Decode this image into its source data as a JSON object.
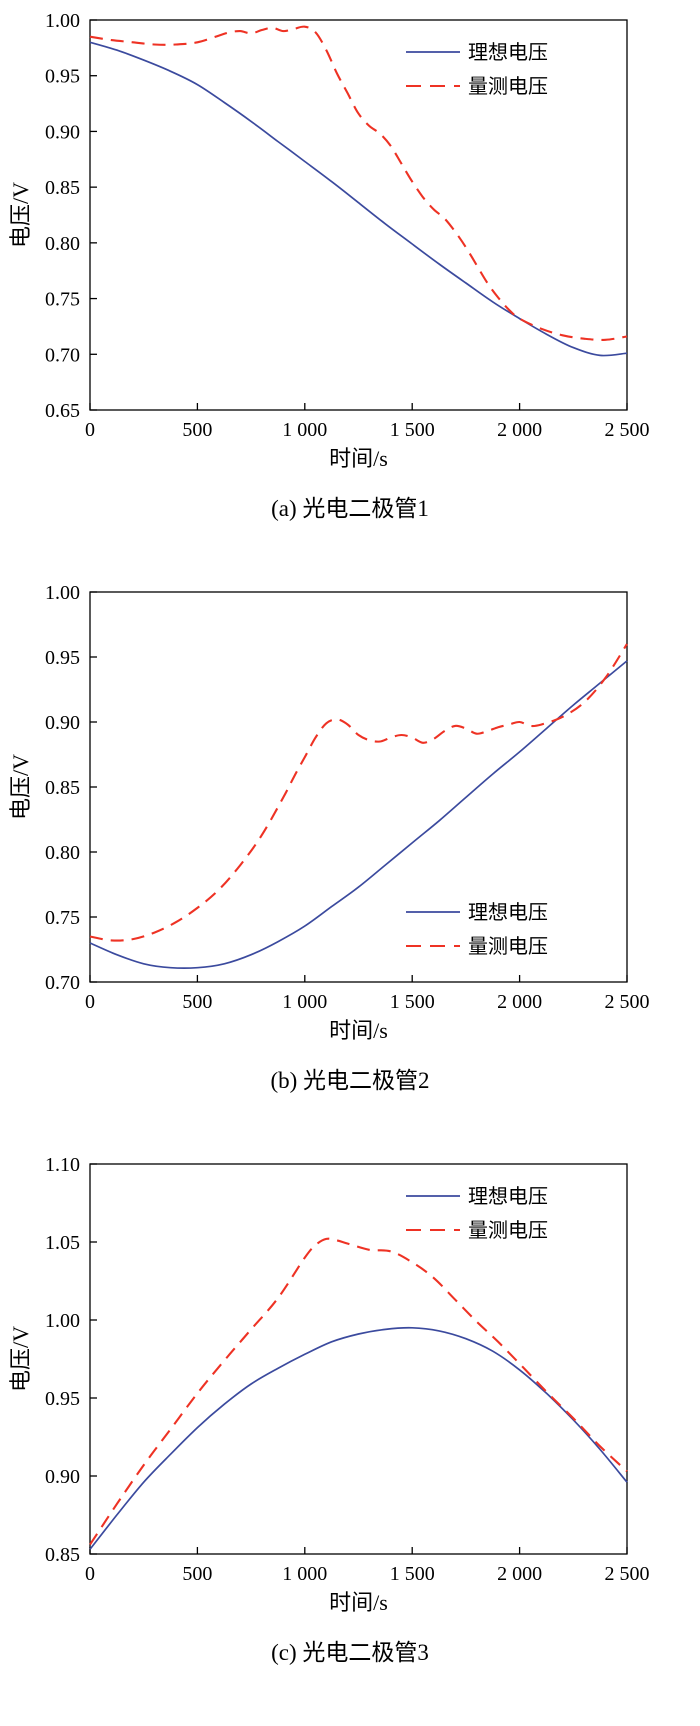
{
  "figure": {
    "ylabel": "电压/V",
    "xlabel": "时间/s",
    "legend": {
      "ideal_label": "理想电压",
      "measured_label": "量测电压"
    },
    "colors": {
      "ideal": "#3b4a9e",
      "measured": "#ee3224",
      "axis": "#000000"
    }
  },
  "chart_data": [
    {
      "key": "a",
      "type": "line",
      "caption": "(a) 光电二极管1",
      "xlabel": "时间/s",
      "ylabel": "电压/V",
      "xlim": [
        0,
        2500
      ],
      "ylim": [
        0.65,
        1.0
      ],
      "xticks": [
        0,
        500,
        1000,
        1500,
        2000,
        2500
      ],
      "xtick_labels": [
        "0",
        "500",
        "1 000",
        "1 500",
        "2 000",
        "2 500"
      ],
      "yticks": [
        0.65,
        0.7,
        0.75,
        0.8,
        0.85,
        0.9,
        0.95,
        1.0
      ],
      "ytick_labels": [
        "0.65",
        "0.70",
        "0.75",
        "0.80",
        "0.85",
        "0.90",
        "0.95",
        "1.00"
      ],
      "grid": false,
      "legend_position": "top-right",
      "series": [
        {
          "name": "理想电压",
          "style": "solid",
          "color": "#3b4a9e",
          "x": [
            0,
            125,
            250,
            375,
            500,
            625,
            750,
            875,
            1000,
            1125,
            1250,
            1375,
            1500,
            1625,
            1750,
            1875,
            2000,
            2125,
            2250,
            2375,
            2500
          ],
          "y": [
            0.98,
            0.973,
            0.964,
            0.954,
            0.942,
            0.926,
            0.909,
            0.891,
            0.873,
            0.855,
            0.836,
            0.817,
            0.799,
            0.781,
            0.764,
            0.747,
            0.732,
            0.718,
            0.706,
            0.699,
            0.701
          ]
        },
        {
          "name": "量测电压",
          "style": "dashed",
          "color": "#ee3224",
          "x": [
            0,
            100,
            200,
            300,
            400,
            500,
            600,
            650,
            700,
            750,
            800,
            850,
            900,
            950,
            1000,
            1050,
            1100,
            1150,
            1200,
            1250,
            1300,
            1350,
            1400,
            1450,
            1500,
            1550,
            1600,
            1650,
            1700,
            1750,
            1800,
            1850,
            1900,
            1950,
            2000,
            2100,
            2200,
            2300,
            2400,
            2500
          ],
          "y": [
            0.985,
            0.982,
            0.98,
            0.978,
            0.978,
            0.98,
            0.986,
            0.989,
            0.99,
            0.988,
            0.991,
            0.993,
            0.99,
            0.992,
            0.994,
            0.989,
            0.973,
            0.952,
            0.934,
            0.916,
            0.905,
            0.898,
            0.887,
            0.871,
            0.855,
            0.841,
            0.83,
            0.822,
            0.81,
            0.796,
            0.78,
            0.764,
            0.751,
            0.74,
            0.732,
            0.723,
            0.717,
            0.714,
            0.713,
            0.716
          ]
        }
      ]
    },
    {
      "key": "b",
      "type": "line",
      "caption": "(b) 光电二极管2",
      "xlabel": "时间/s",
      "ylabel": "电压/V",
      "xlim": [
        0,
        2500
      ],
      "ylim": [
        0.7,
        1.0
      ],
      "xticks": [
        0,
        500,
        1000,
        1500,
        2000,
        2500
      ],
      "xtick_labels": [
        "0",
        "500",
        "1 000",
        "1 500",
        "2 000",
        "2 500"
      ],
      "yticks": [
        0.7,
        0.75,
        0.8,
        0.85,
        0.9,
        0.95,
        1.0
      ],
      "ytick_labels": [
        "0.70",
        "0.75",
        "0.80",
        "0.85",
        "0.90",
        "0.95",
        "1.00"
      ],
      "grid": false,
      "legend_position": "bottom-right",
      "series": [
        {
          "name": "理想电压",
          "style": "solid",
          "color": "#3b4a9e",
          "x": [
            0,
            125,
            250,
            375,
            500,
            625,
            750,
            875,
            1000,
            1125,
            1250,
            1375,
            1500,
            1625,
            1750,
            1875,
            2000,
            2125,
            2250,
            2375,
            2500
          ],
          "y": [
            0.73,
            0.721,
            0.714,
            0.711,
            0.711,
            0.714,
            0.721,
            0.731,
            0.743,
            0.758,
            0.773,
            0.79,
            0.807,
            0.824,
            0.842,
            0.86,
            0.877,
            0.895,
            0.913,
            0.93,
            0.947
          ]
        },
        {
          "name": "量测电压",
          "style": "dashed",
          "color": "#ee3224",
          "x": [
            0,
            100,
            200,
            300,
            400,
            500,
            600,
            700,
            800,
            900,
            950,
            1000,
            1050,
            1100,
            1150,
            1200,
            1250,
            1300,
            1350,
            1400,
            1450,
            1500,
            1550,
            1600,
            1650,
            1700,
            1750,
            1800,
            1850,
            1900,
            1950,
            2000,
            2050,
            2100,
            2200,
            2300,
            2400,
            2500
          ],
          "y": [
            0.735,
            0.732,
            0.733,
            0.738,
            0.746,
            0.757,
            0.771,
            0.79,
            0.813,
            0.842,
            0.858,
            0.873,
            0.888,
            0.899,
            0.902,
            0.898,
            0.89,
            0.886,
            0.885,
            0.888,
            0.89,
            0.888,
            0.884,
            0.887,
            0.893,
            0.897,
            0.895,
            0.891,
            0.893,
            0.896,
            0.898,
            0.9,
            0.897,
            0.898,
            0.904,
            0.915,
            0.934,
            0.96
          ]
        }
      ]
    },
    {
      "key": "c",
      "type": "line",
      "caption": "(c) 光电二极管3",
      "xlabel": "时间/s",
      "ylabel": "电压/V",
      "xlim": [
        0,
        2500
      ],
      "ylim": [
        0.85,
        1.1
      ],
      "xticks": [
        0,
        500,
        1000,
        1500,
        2000,
        2500
      ],
      "xtick_labels": [
        "0",
        "500",
        "1 000",
        "1 500",
        "2 000",
        "2 500"
      ],
      "yticks": [
        0.85,
        0.9,
        0.95,
        1.0,
        1.05,
        1.1
      ],
      "ytick_labels": [
        "0.85",
        "0.90",
        "0.95",
        "1.00",
        "1.05",
        "1.10"
      ],
      "grid": false,
      "legend_position": "top-right",
      "series": [
        {
          "name": "理想电压",
          "style": "solid",
          "color": "#3b4a9e",
          "x": [
            0,
            125,
            250,
            375,
            500,
            625,
            750,
            875,
            1000,
            1125,
            1250,
            1375,
            1500,
            1625,
            1750,
            1875,
            2000,
            2125,
            2250,
            2375,
            2500
          ],
          "y": [
            0.853,
            0.875,
            0.896,
            0.914,
            0.931,
            0.946,
            0.959,
            0.969,
            0.978,
            0.986,
            0.991,
            0.994,
            0.995,
            0.993,
            0.988,
            0.98,
            0.968,
            0.953,
            0.936,
            0.917,
            0.896
          ]
        },
        {
          "name": "量测电压",
          "style": "dashed",
          "color": "#ee3224",
          "x": [
            0,
            125,
            250,
            375,
            500,
            625,
            750,
            875,
            1000,
            1050,
            1100,
            1150,
            1200,
            1300,
            1400,
            1500,
            1600,
            1700,
            1800,
            1900,
            2000,
            2125,
            2250,
            2375,
            2500
          ],
          "y": [
            0.856,
            0.882,
            0.907,
            0.93,
            0.953,
            0.974,
            0.994,
            1.014,
            1.04,
            1.048,
            1.052,
            1.051,
            1.049,
            1.045,
            1.044,
            1.037,
            1.027,
            1.013,
            0.999,
            0.986,
            0.972,
            0.954,
            0.937,
            0.919,
            0.903
          ]
        }
      ]
    }
  ]
}
